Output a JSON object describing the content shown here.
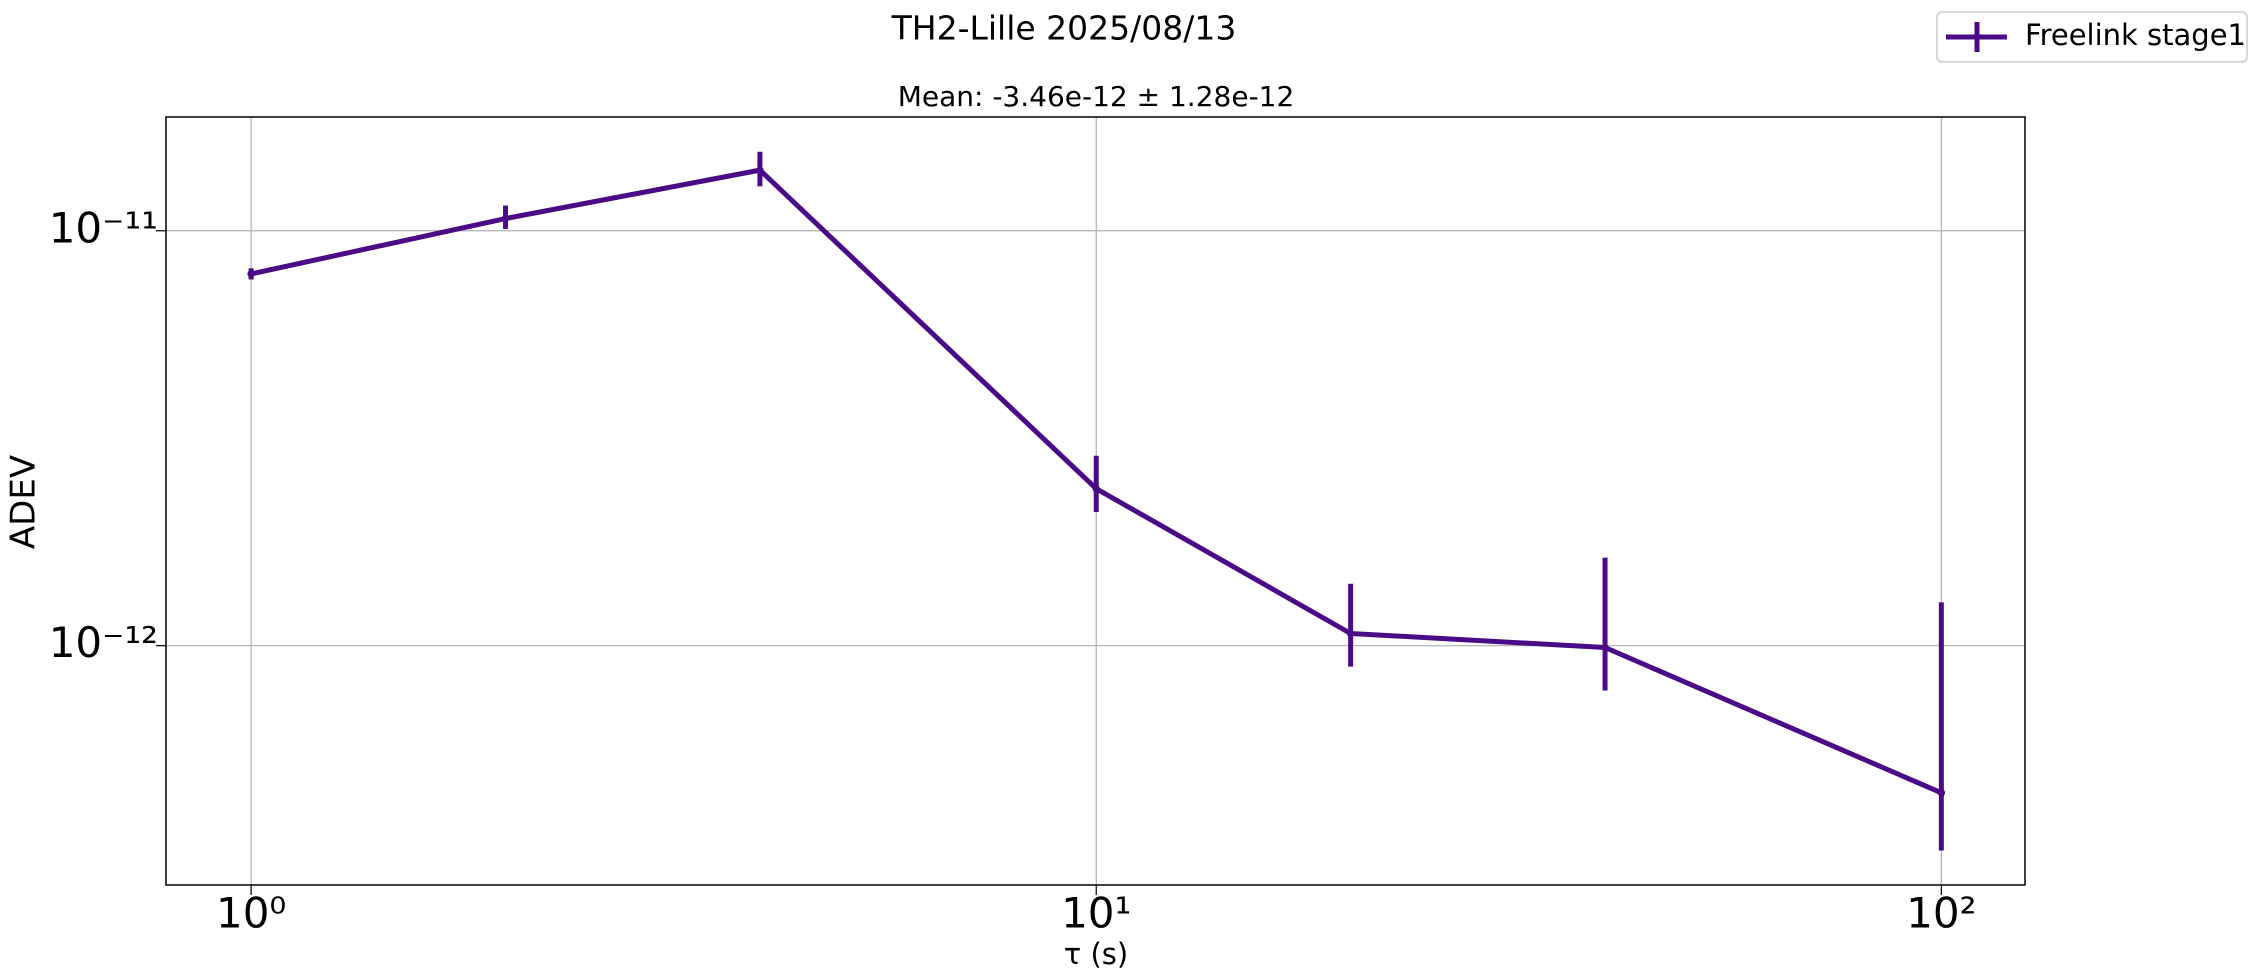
{
  "chart_data": {
    "type": "errorbar-line",
    "title": "TH2-Lille 2025/08/13",
    "subtitle": "Mean: -3.46e-12 ± 1.28e-12",
    "xlabel": "τ (s)",
    "ylabel": "ADEV",
    "xscale": "log",
    "yscale": "log",
    "grid": true,
    "legend": "upper right outside",
    "x": [
      1,
      2,
      4,
      10,
      20,
      40,
      100
    ],
    "series": [
      {
        "name": "Freelink stage1",
        "color": "#4b0a86",
        "values": [
          7.87e-12,
          1.07e-11,
          1.4e-11,
          2.39e-12,
          1.07e-12,
          9.9e-13,
          4.42e-13
        ],
        "err_low": [
          2.4e-13,
          6e-13,
          1.2e-12,
          2.9e-13,
          1.8e-13,
          2.1e-13,
          1.21e-13
        ],
        "err_high": [
          2.5e-13,
          8e-13,
          1.5e-12,
          4.8e-13,
          3.4e-13,
          6.4e-13,
          8.3e-13
        ]
      }
    ],
    "xlim": [
      0.793,
      125.6
    ],
    "ylim": [
      2.65e-13,
      1.88e-11
    ],
    "xticks": [
      {
        "value": 1,
        "label": "10⁰"
      },
      {
        "value": 10,
        "label": "10¹"
      },
      {
        "value": 100,
        "label": "10²"
      }
    ],
    "yticks": [
      {
        "value": 1e-12,
        "label": "10⁻¹²"
      },
      {
        "value": 1e-11,
        "label": "10⁻¹¹"
      }
    ]
  }
}
